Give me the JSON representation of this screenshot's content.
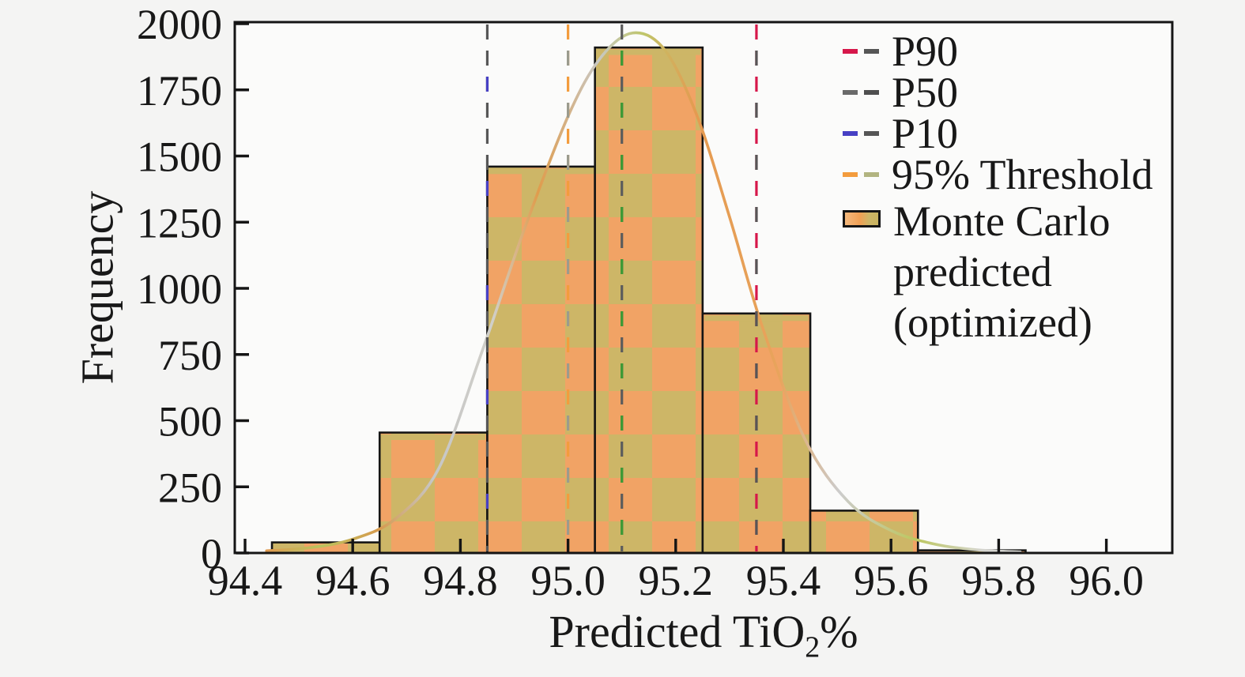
{
  "figure": {
    "background": "#f4f4f3",
    "plot_background": "#fbfbfa",
    "spine_color": "#151515"
  },
  "chart_data": {
    "type": "bar",
    "subtype": "histogram_with_kde",
    "title": "",
    "xlabel": {
      "text": "Predicted TiO2%",
      "main": "Predicted TiO",
      "subscript": "2",
      "suffix": "%"
    },
    "ylabel": "Frequency",
    "xlim": [
      94.38,
      96.11
    ],
    "ylim": [
      0,
      2000
    ],
    "grid": "off",
    "x_ticks": [
      94.4,
      94.6,
      94.8,
      95.0,
      95.2,
      95.4,
      95.6,
      95.8,
      96.0
    ],
    "x_tick_labels": [
      "94.4",
      "94.6",
      "94.8",
      "95.0",
      "95.2",
      "95.4",
      "95.6",
      "95.8",
      "96.0"
    ],
    "y_ticks": [
      0,
      250,
      500,
      750,
      1000,
      1250,
      1500,
      1750,
      2000
    ],
    "y_tick_labels": [
      "0",
      "250",
      "500",
      "750",
      "1000",
      "1250",
      "1500",
      "1750",
      "2000"
    ],
    "histogram": {
      "label": "Monte Carlo predicted (optimized)",
      "bin_edges": [
        94.45,
        94.65,
        94.85,
        95.05,
        95.25,
        95.45,
        95.65,
        95.85
      ],
      "counts": [
        40,
        455,
        1460,
        1910,
        905,
        160,
        10
      ],
      "fill": "#f1a365",
      "mottle": "#cdb667",
      "edge": "#151515"
    },
    "kde": {
      "points": [
        [
          94.44,
          8
        ],
        [
          94.52,
          20
        ],
        [
          94.6,
          52
        ],
        [
          94.68,
          130
        ],
        [
          94.76,
          320
        ],
        [
          94.84,
          760
        ],
        [
          94.92,
          1230
        ],
        [
          95.0,
          1650
        ],
        [
          95.06,
          1870
        ],
        [
          95.12,
          1965
        ],
        [
          95.18,
          1900
        ],
        [
          95.24,
          1650
        ],
        [
          95.3,
          1270
        ],
        [
          95.36,
          860
        ],
        [
          95.44,
          430
        ],
        [
          95.52,
          195
        ],
        [
          95.6,
          85
        ],
        [
          95.68,
          34
        ],
        [
          95.76,
          12
        ],
        [
          95.84,
          4
        ]
      ],
      "gradient": [
        {
          "o": 0.0,
          "c": "#e09a50"
        },
        {
          "o": 0.07,
          "c": "#b9c45e"
        },
        {
          "o": 0.15,
          "c": "#d79a4e"
        },
        {
          "o": 0.22,
          "c": "#c6c6c6"
        },
        {
          "o": 0.3,
          "c": "#d0cfc9"
        },
        {
          "o": 0.36,
          "c": "#e09c4c"
        },
        {
          "o": 0.44,
          "c": "#c8c8c4"
        },
        {
          "o": 0.5,
          "c": "#bfc66a"
        },
        {
          "o": 0.57,
          "c": "#e59a50"
        },
        {
          "o": 0.68,
          "c": "#e8a45c"
        },
        {
          "o": 0.76,
          "c": "#cccccc"
        },
        {
          "o": 0.86,
          "c": "#bdc75f"
        },
        {
          "o": 0.95,
          "c": "#d5d5d0"
        },
        {
          "o": 1.0,
          "c": "#d8d8d4"
        }
      ]
    },
    "vlines": [
      {
        "label": "P10",
        "x": 94.85,
        "color": "#575757",
        "overlay": "#4740c4",
        "overlay_mode": "sparse"
      },
      {
        "label": "95% Threshold",
        "x": 95.0,
        "color": "#f39c3d",
        "overlay": "#9b9b8d",
        "overlay_mode": "alt"
      },
      {
        "label": "P50",
        "x": 95.1,
        "color": "#5c5c5c",
        "overlay": "#3d9b35",
        "overlay_mode": "alt"
      },
      {
        "label": "P90",
        "x": 95.35,
        "color": "#d6174a",
        "overlay": "#565656",
        "overlay_mode": "alt"
      }
    ],
    "legend": {
      "position": "upper right",
      "frame": "off",
      "items": [
        {
          "label": "P90",
          "swatch": "line",
          "color": "#d6174a",
          "color2": "#565656"
        },
        {
          "label": "P50",
          "swatch": "line",
          "color": "#6a6a6a",
          "color2": "#4f4f4f"
        },
        {
          "label": "P10",
          "swatch": "line",
          "color": "#4740c4",
          "color2": "#565656"
        },
        {
          "label": "95% Threshold",
          "swatch": "line",
          "color": "#f39c3d",
          "color2": "#b2b480"
        },
        {
          "label": "Monte Carlo predicted (optimized)",
          "label_lines": [
            "Monte Carlo",
            "predicted",
            "(optimized)"
          ],
          "swatch": "patch"
        }
      ]
    }
  }
}
